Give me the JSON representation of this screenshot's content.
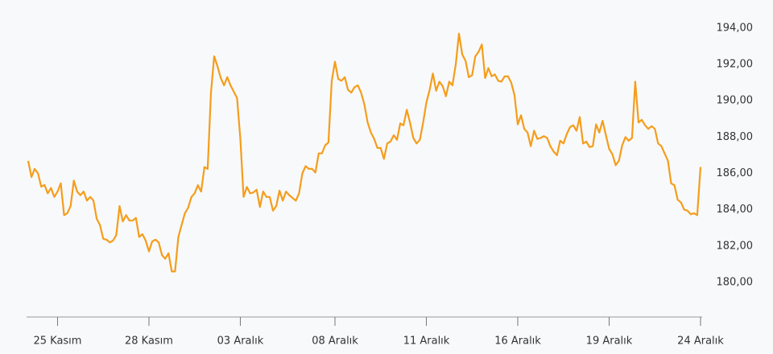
{
  "chart_data": {
    "type": "line",
    "series": [
      {
        "color": "#f59d1a",
        "values": [
          186.69,
          185.8,
          186.25,
          186.0,
          185.27,
          185.36,
          184.9,
          185.2,
          184.7,
          185.0,
          185.45,
          183.7,
          183.8,
          184.2,
          185.6,
          185.0,
          184.8,
          185.0,
          184.5,
          184.7,
          184.5,
          183.5,
          183.15,
          182.4,
          182.35,
          182.2,
          182.3,
          182.6,
          184.2,
          183.35,
          183.7,
          183.4,
          183.4,
          183.55,
          182.5,
          182.65,
          182.3,
          181.7,
          182.25,
          182.35,
          182.2,
          181.5,
          181.3,
          181.6,
          180.6,
          180.6,
          182.5,
          183.15,
          183.8,
          184.1,
          184.7,
          184.9,
          185.35,
          185.0,
          186.35,
          186.25,
          190.45,
          192.45,
          191.9,
          191.25,
          190.85,
          191.3,
          190.85,
          190.5,
          190.15,
          187.9,
          184.7,
          185.25,
          184.9,
          184.95,
          185.1,
          184.15,
          185.0,
          184.7,
          184.7,
          183.95,
          184.2,
          185.05,
          184.5,
          185.0,
          184.8,
          184.65,
          184.5,
          184.9,
          186.0,
          186.4,
          186.25,
          186.25,
          186.05,
          187.1,
          187.1,
          187.55,
          187.7,
          191.1,
          192.15,
          191.2,
          191.1,
          191.3,
          190.6,
          190.45,
          190.75,
          190.85,
          190.45,
          189.8,
          188.8,
          188.25,
          187.9,
          187.4,
          187.4,
          186.8,
          187.65,
          187.75,
          188.1,
          187.85,
          188.75,
          188.65,
          189.5,
          188.8,
          187.95,
          187.65,
          187.85,
          188.8,
          189.9,
          190.6,
          191.5,
          190.55,
          191.05,
          190.8,
          190.25,
          191.05,
          190.85,
          192.0,
          193.7,
          192.55,
          192.2,
          191.3,
          191.4,
          192.45,
          192.7,
          193.1,
          191.25,
          191.8,
          191.35,
          191.45,
          191.1,
          191.05,
          191.35,
          191.35,
          191.0,
          190.3,
          188.7,
          189.2,
          188.45,
          188.25,
          187.5,
          188.35,
          187.9,
          187.95,
          188.05,
          187.95,
          187.5,
          187.2,
          187.0,
          187.8,
          187.65,
          188.15,
          188.55,
          188.65,
          188.35,
          189.1,
          187.65,
          187.75,
          187.45,
          187.5,
          188.7,
          188.25,
          188.9,
          188.1,
          187.35,
          187.05,
          186.45,
          186.7,
          187.55,
          188.0,
          187.8,
          187.95,
          191.05,
          188.8,
          188.95,
          188.65,
          188.45,
          188.6,
          188.45,
          187.65,
          187.5,
          187.1,
          186.7,
          185.45,
          185.35,
          184.55,
          184.4,
          184.0,
          183.95,
          183.75,
          183.8,
          183.7,
          186.35
        ]
      }
    ],
    "xlim": [
      0,
      206
    ],
    "xticks": [
      {
        "value": 9,
        "label": "25 Kasım"
      },
      {
        "value": 37,
        "label": "28 Kasım"
      },
      {
        "value": 65,
        "label": "03 Aralık"
      },
      {
        "value": 94,
        "label": "08 Aralık"
      },
      {
        "value": 122,
        "label": "11 Aralık"
      },
      {
        "value": 150,
        "label": "16 Aralık"
      },
      {
        "value": 178,
        "label": "19 Aralık"
      },
      {
        "value": 206,
        "label": "24 Aralık"
      }
    ],
    "ylim": [
      178.09,
      195.55
    ],
    "yticks": [
      {
        "value": 180,
        "label": "180,00"
      },
      {
        "value": 182,
        "label": "182,00"
      },
      {
        "value": 184,
        "label": "184,00"
      },
      {
        "value": 186,
        "label": "186,00"
      },
      {
        "value": 188,
        "label": "188,00"
      },
      {
        "value": 190,
        "label": "190,00"
      },
      {
        "value": 192,
        "label": "192,00"
      },
      {
        "value": 194,
        "label": "194,00"
      }
    ]
  }
}
